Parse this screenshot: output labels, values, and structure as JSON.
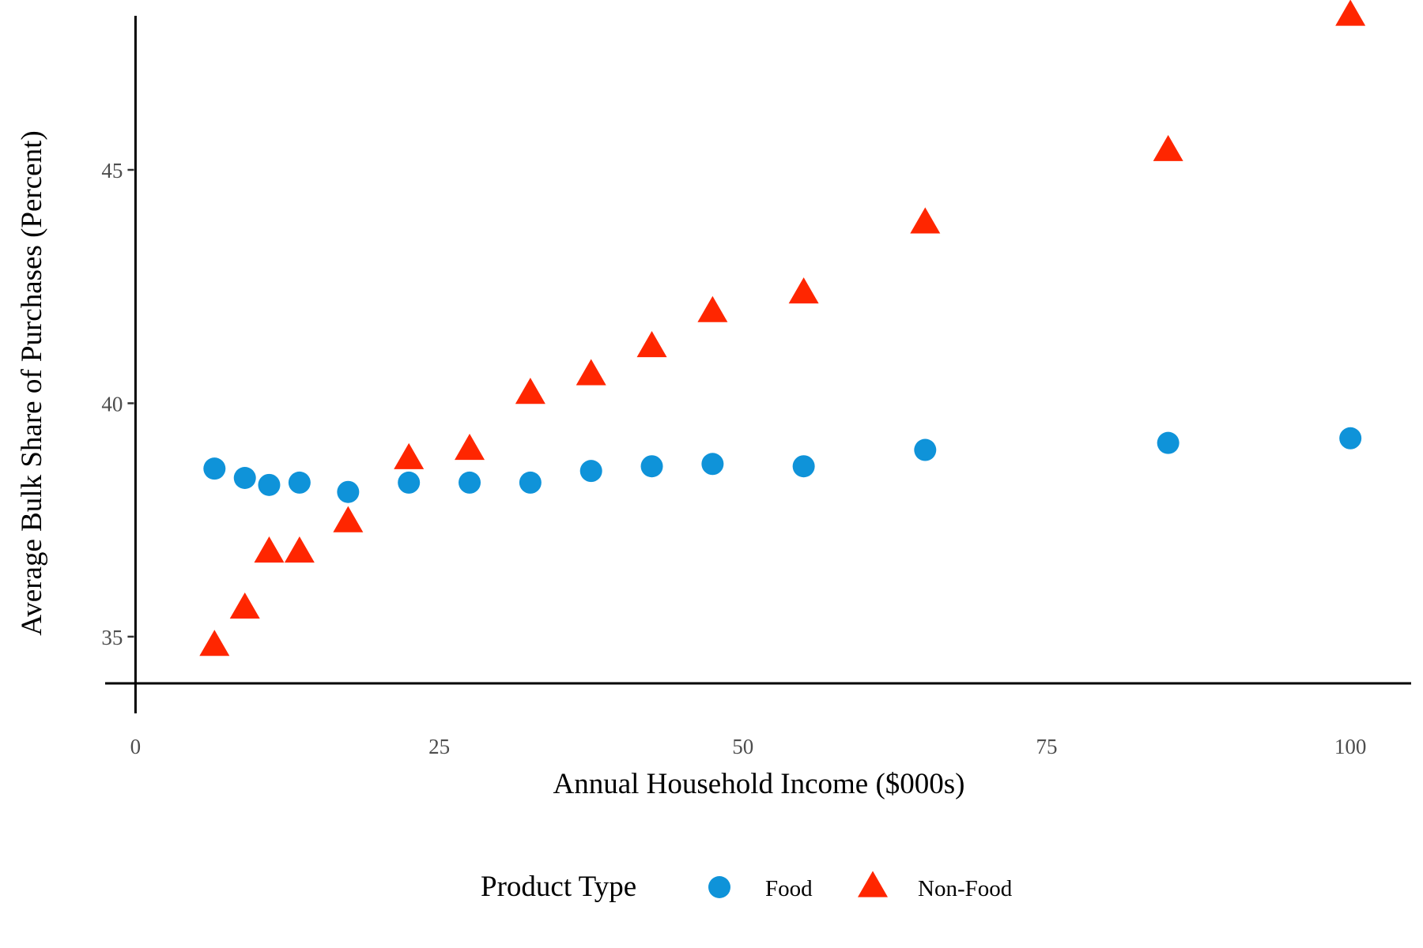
{
  "chart_data": {
    "type": "scatter",
    "title": "",
    "xlabel": "Annual Household Income ($000s)",
    "ylabel": "Average Bulk Share of Purchases (Percent)",
    "xlim": [
      -2.5,
      105
    ],
    "ylim": [
      34,
      48.3
    ],
    "x_ticks": [
      {
        "value": 0,
        "label": "0"
      },
      {
        "value": 25,
        "label": "25"
      },
      {
        "value": 50,
        "label": "50"
      },
      {
        "value": 75,
        "label": "75"
      },
      {
        "value": 100,
        "label": "100"
      }
    ],
    "y_ticks": [
      {
        "value": 35,
        "label": "35"
      },
      {
        "value": 40,
        "label": "40"
      },
      {
        "value": 45,
        "label": "45"
      }
    ],
    "grid": false,
    "legend": {
      "title": "Product Type",
      "position": "bottom"
    },
    "series": [
      {
        "name": "Food",
        "color": "#0f93d9",
        "marker": "circle",
        "points": [
          {
            "x": 6.5,
            "y": 38.6
          },
          {
            "x": 9.0,
            "y": 38.4
          },
          {
            "x": 11.0,
            "y": 38.25
          },
          {
            "x": 13.5,
            "y": 38.3
          },
          {
            "x": 17.5,
            "y": 38.1
          },
          {
            "x": 22.5,
            "y": 38.3
          },
          {
            "x": 27.5,
            "y": 38.3
          },
          {
            "x": 32.5,
            "y": 38.3
          },
          {
            "x": 37.5,
            "y": 38.55
          },
          {
            "x": 42.5,
            "y": 38.65
          },
          {
            "x": 47.5,
            "y": 38.7
          },
          {
            "x": 55.0,
            "y": 38.65
          },
          {
            "x": 65.0,
            "y": 39.0
          },
          {
            "x": 85.0,
            "y": 39.15
          },
          {
            "x": 100.0,
            "y": 39.25
          }
        ]
      },
      {
        "name": "Non-Food",
        "color": "#ff2600",
        "marker": "triangle",
        "points": [
          {
            "x": 6.5,
            "y": 34.8
          },
          {
            "x": 9.0,
            "y": 35.6
          },
          {
            "x": 11.0,
            "y": 36.8
          },
          {
            "x": 13.5,
            "y": 36.8
          },
          {
            "x": 17.5,
            "y": 37.45
          },
          {
            "x": 22.5,
            "y": 38.8
          },
          {
            "x": 27.5,
            "y": 39.0
          },
          {
            "x": 32.5,
            "y": 40.2
          },
          {
            "x": 37.5,
            "y": 40.6
          },
          {
            "x": 42.5,
            "y": 41.2
          },
          {
            "x": 47.5,
            "y": 41.95
          },
          {
            "x": 55.0,
            "y": 42.35
          },
          {
            "x": 65.0,
            "y": 43.85
          },
          {
            "x": 85.0,
            "y": 45.4
          },
          {
            "x": 100.0,
            "y": 48.3
          }
        ]
      }
    ]
  }
}
